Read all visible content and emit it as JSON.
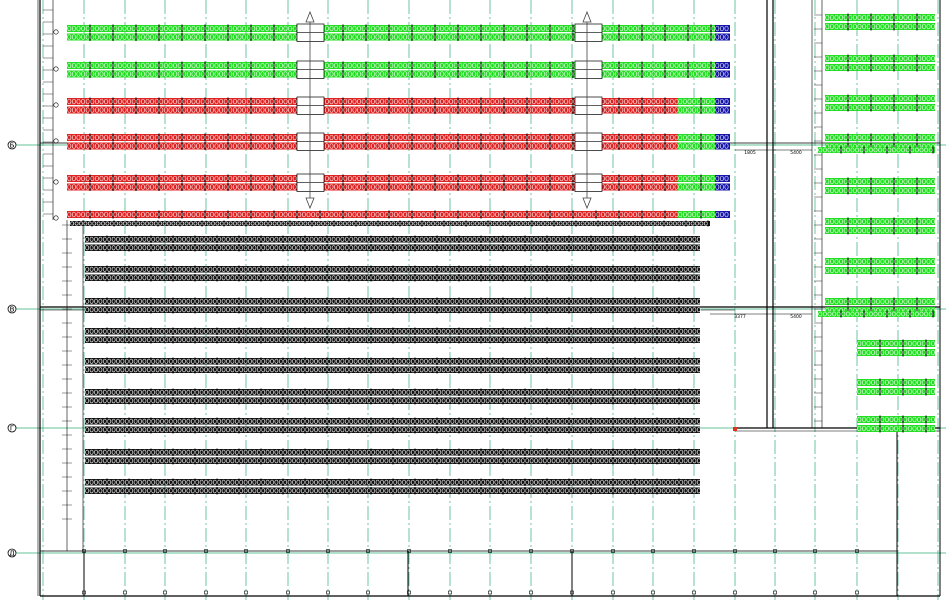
{
  "drawing": {
    "grid_axes": [
      "Б",
      "В",
      "Г",
      "Д"
    ],
    "dimension_labels": [
      "1805",
      "5400",
      "3377",
      "5400"
    ],
    "colors": {
      "background": "#ffffff",
      "grid_line": "#2fae78",
      "wall": "#000000",
      "rack_green": "#22dd22",
      "rack_red": "#dd2222",
      "rack_blue": "#1515aa",
      "rack_black": "#111111",
      "pallet_marking": "#ffffff"
    },
    "rack_rows_upper": [
      {
        "kind": "double",
        "color": "green",
        "end_cap": "blue"
      },
      {
        "kind": "double",
        "color": "green",
        "end_cap": "blue"
      },
      {
        "kind": "double",
        "color": "red",
        "tail": "green",
        "end_cap": "blue"
      },
      {
        "kind": "double",
        "color": "red",
        "tail": "green",
        "end_cap": "blue"
      },
      {
        "kind": "double",
        "color": "red",
        "tail": "green",
        "end_cap": "blue"
      },
      {
        "kind": "single",
        "color": "red",
        "tail": "green",
        "end_cap": "blue"
      }
    ],
    "rack_rows_lower_count": 9,
    "rack_blocks_right_count": 11,
    "flow_arrows": [
      "up",
      "down"
    ]
  }
}
